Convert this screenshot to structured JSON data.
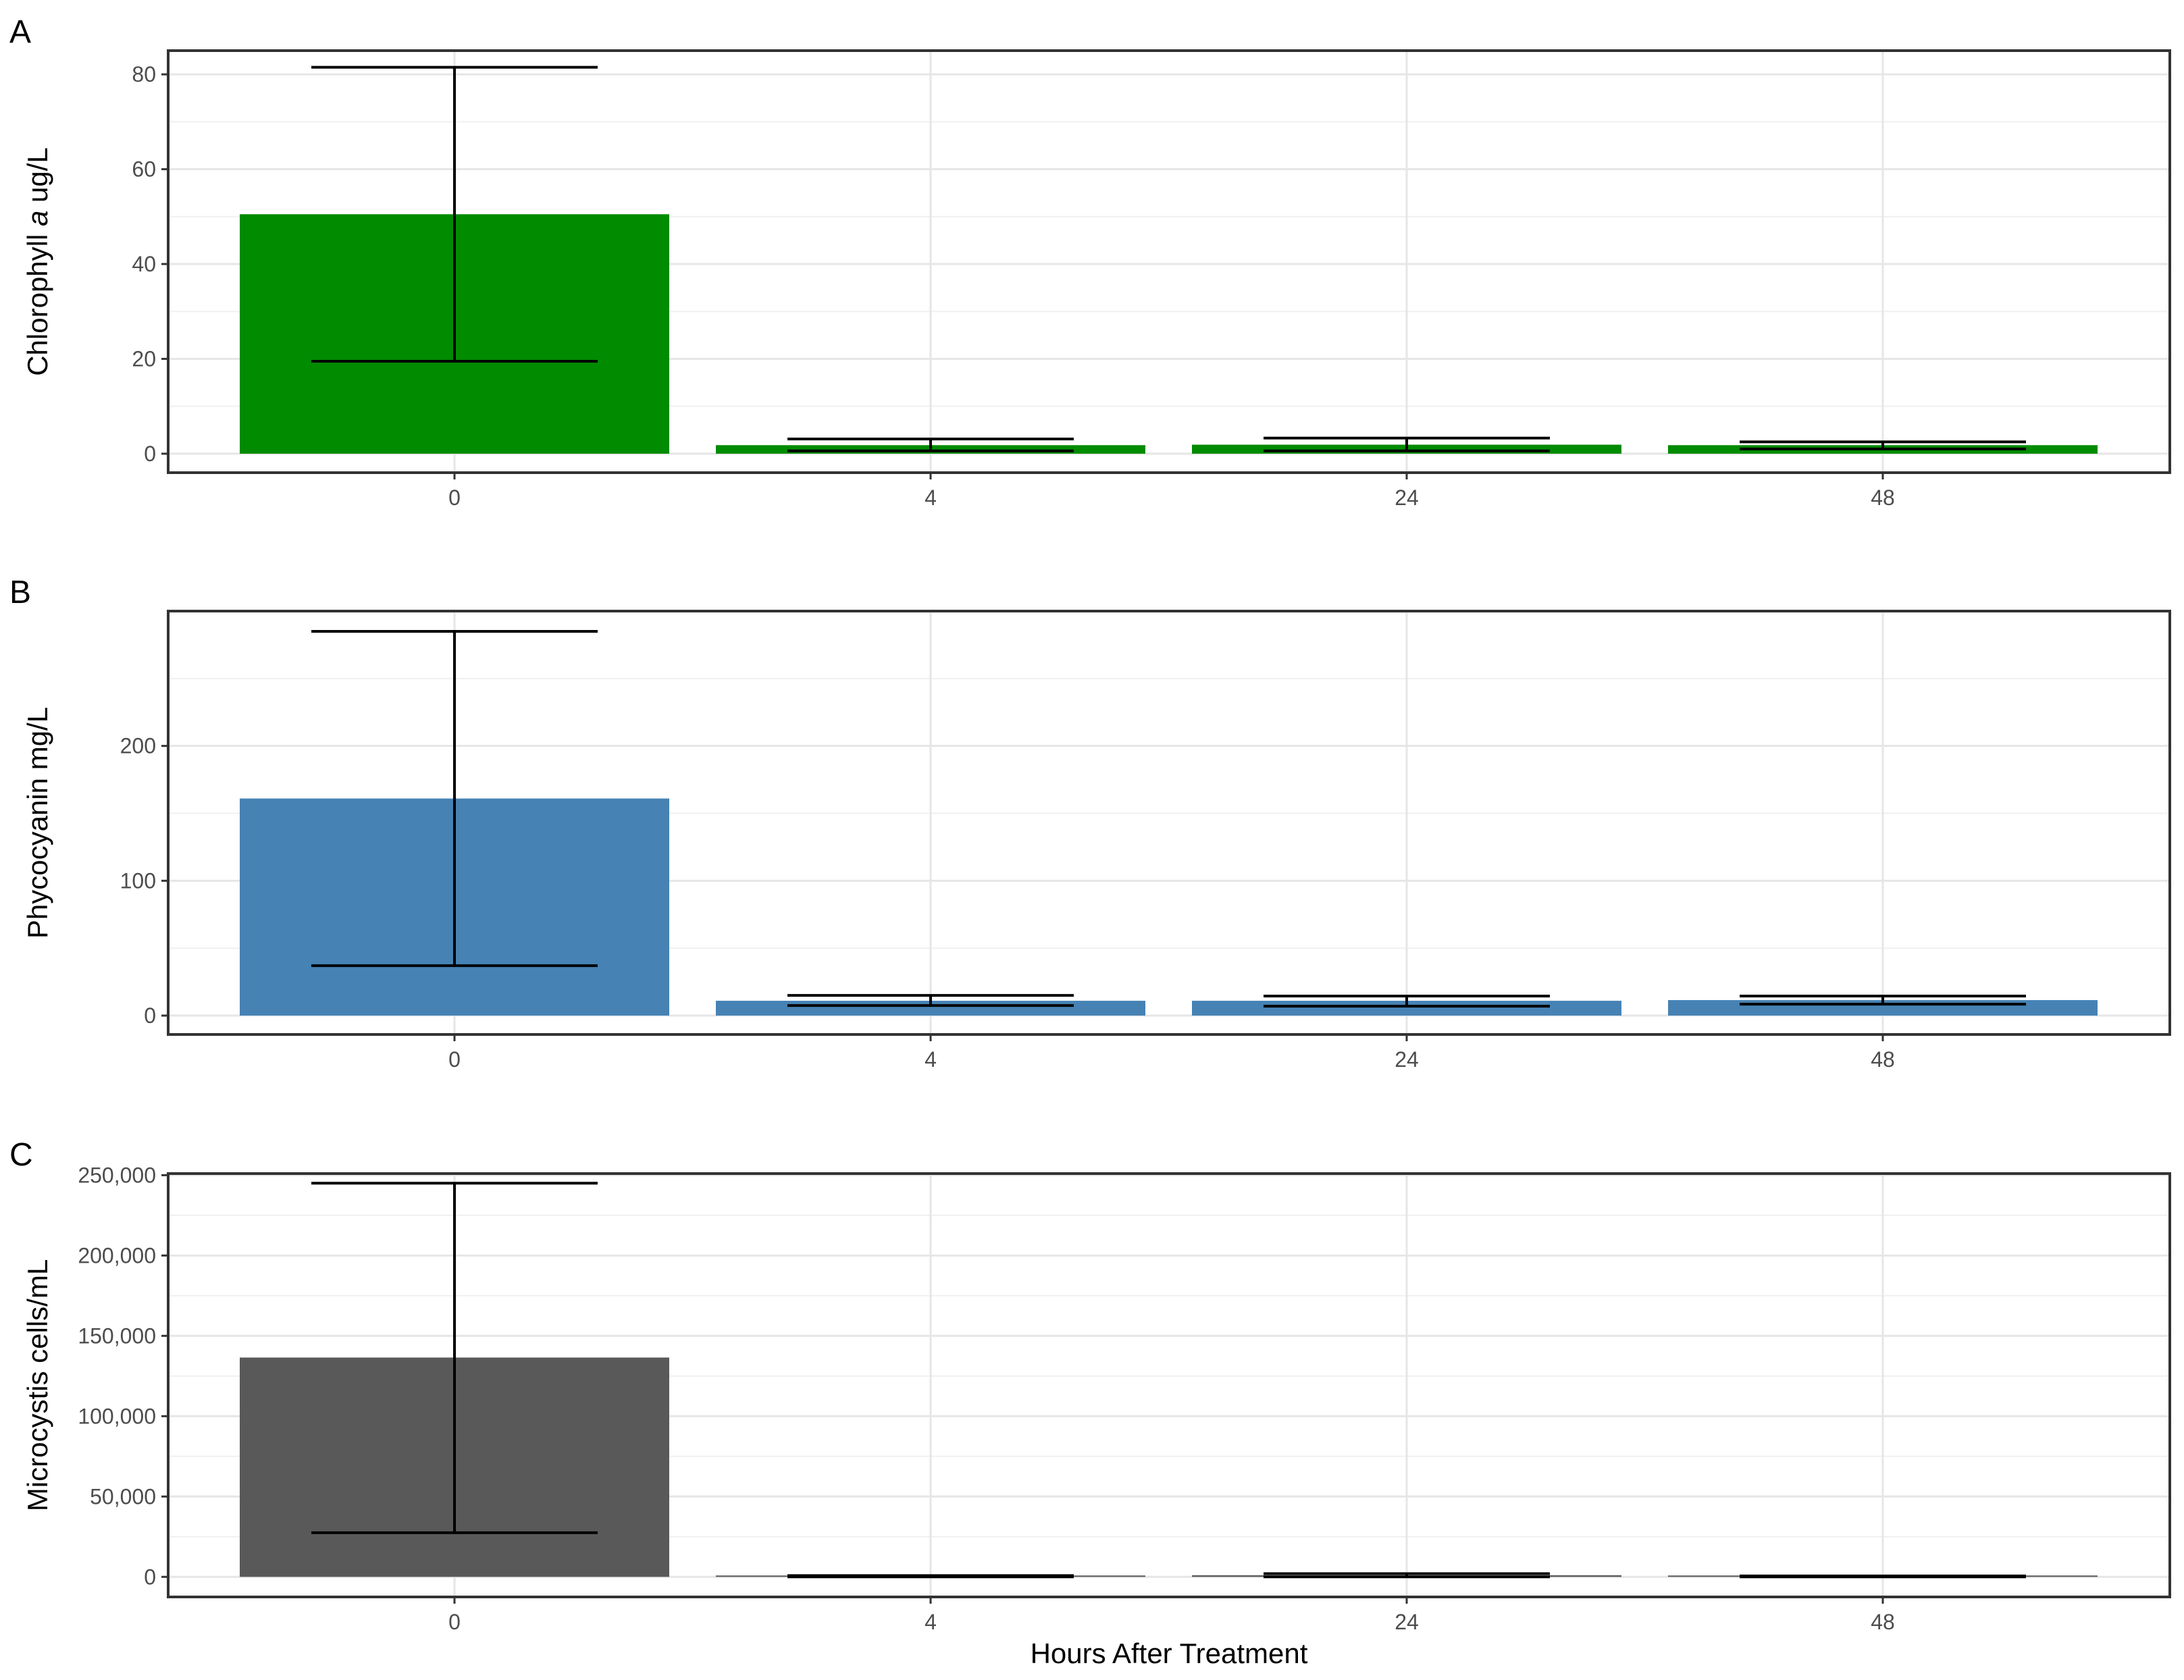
{
  "xlabel": "Hours After Treatment",
  "chart_data": [
    {
      "type": "bar",
      "panel": "A",
      "title": "",
      "ylabel_parts": [
        "Chlorophyll ",
        "a",
        " ug/L"
      ],
      "xlabel": "Hours After Treatment",
      "categories": [
        "0",
        "4",
        "24",
        "48"
      ],
      "values": [
        50.5,
        1.8,
        1.9,
        1.8
      ],
      "error_low": [
        19.5,
        0.6,
        0.6,
        1.0
      ],
      "error_high": [
        81.5,
        3.1,
        3.3,
        2.5
      ],
      "ylim": [
        -4,
        85
      ],
      "yticks": [
        0,
        20,
        40,
        60,
        80
      ],
      "ytick_labels": [
        "0",
        "20",
        "40",
        "60",
        "80"
      ],
      "color": "#008b00",
      "grid": true,
      "legend": "none"
    },
    {
      "type": "bar",
      "panel": "B",
      "title": "",
      "ylabel_parts": [
        "Phycocyanin mg/L"
      ],
      "xlabel": "Hours After Treatment",
      "categories": [
        "0",
        "4",
        "24",
        "48"
      ],
      "values": [
        161,
        11,
        11,
        11.5
      ],
      "error_low": [
        37,
        7.5,
        7,
        8.5
      ],
      "error_high": [
        285,
        15,
        14.5,
        14.5
      ],
      "ylim": [
        -14,
        300
      ],
      "yticks": [
        0,
        100,
        200
      ],
      "ytick_labels": [
        "0",
        "100",
        "200"
      ],
      "color": "#4682b4",
      "grid": true,
      "legend": "none"
    },
    {
      "type": "bar",
      "panel": "C",
      "title": "",
      "ylabel_parts": [
        "Microcystis cells/mL"
      ],
      "xlabel": "Hours After Treatment",
      "categories": [
        "0",
        "4",
        "24",
        "48"
      ],
      "values": [
        136500,
        400,
        1000,
        300
      ],
      "error_low": [
        27500,
        0,
        0,
        0
      ],
      "error_high": [
        245000,
        800,
        2000,
        600
      ],
      "ylim": [
        -12500,
        251000
      ],
      "yticks": [
        0,
        50000,
        100000,
        150000,
        200000,
        250000
      ],
      "ytick_labels": [
        "0",
        "50,000",
        "100,000",
        "150,000",
        "200,000",
        "250,000"
      ],
      "color": "#595959",
      "grid": true,
      "legend": "none"
    }
  ]
}
